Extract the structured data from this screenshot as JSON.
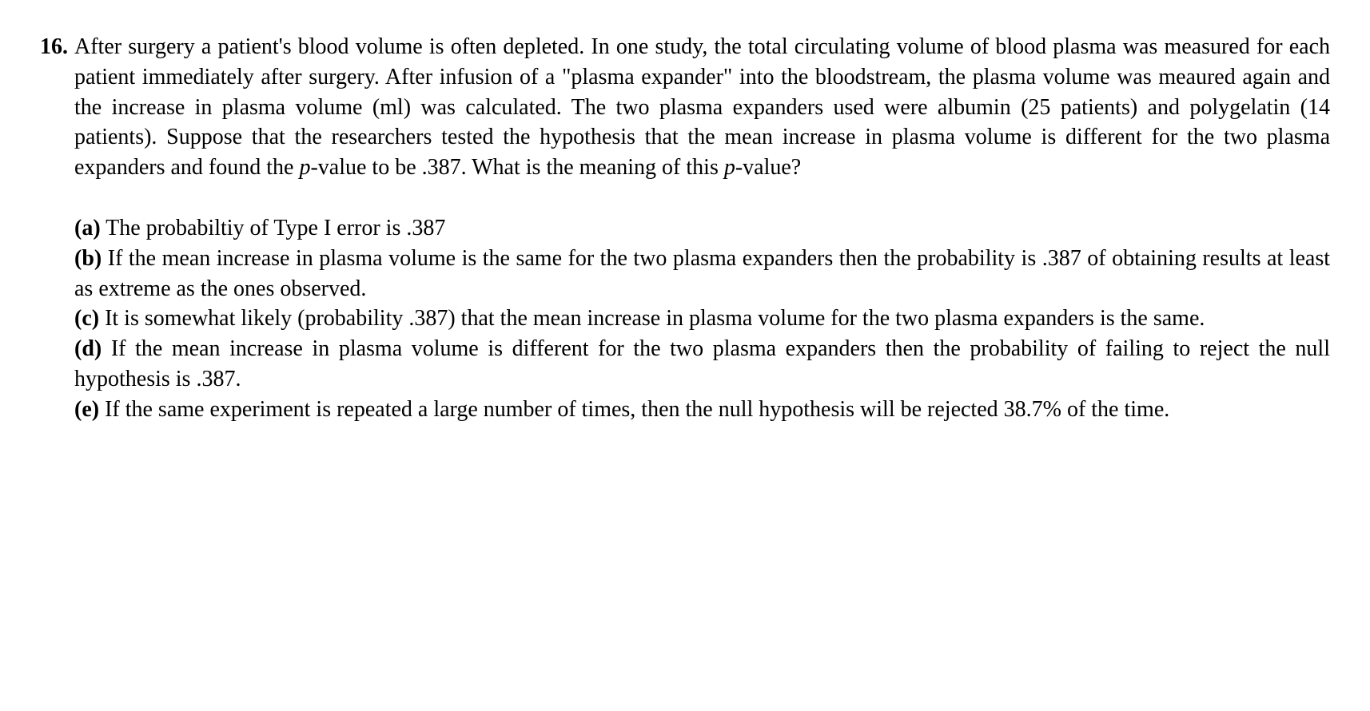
{
  "question": {
    "number": "16.",
    "text_part1": "After surgery a patient's blood volume is often depleted.  In one study, the total circulating volume of blood plasma was measured for each patient immediately after surgery.  After infusion of a \"plasma expander\" into the bloodstream, the plasma volume was meaured again and the increase in plasma volume (ml) was calculated.  The two plasma expanders used were albumin (25 patients) and polygelatin (14 patients).  Suppose that the researchers tested the hypothesis that the mean increase in plasma volume is different for the two plasma expanders and found the ",
    "italic1": "p",
    "text_part2": "-value to be .387.  What is the meaning of this ",
    "italic2": "p",
    "text_part3": "-value?"
  },
  "options": {
    "a": {
      "label": "(a)",
      "text": " The probabiltiy of Type I error is .387"
    },
    "b": {
      "label": "(b)",
      "text": " If the mean increase in plasma volume is the same for the two plasma expanders then the probability is .387 of obtaining results at least as extreme as the ones observed."
    },
    "c": {
      "label": "(c)",
      "text": " It is somewhat likely (probability .387) that the mean increase in plasma volume for the two plasma expanders is the same."
    },
    "d": {
      "label": "(d)",
      "text": " If the mean increase in plasma volume is different for the two plasma expanders then the probability of failing to reject the null hypothesis is .387."
    },
    "e": {
      "label": "(e)",
      "text": " If the same experiment is repeated a large number of times, then the null hypothesis will be rejected 38.7% of the time."
    }
  }
}
